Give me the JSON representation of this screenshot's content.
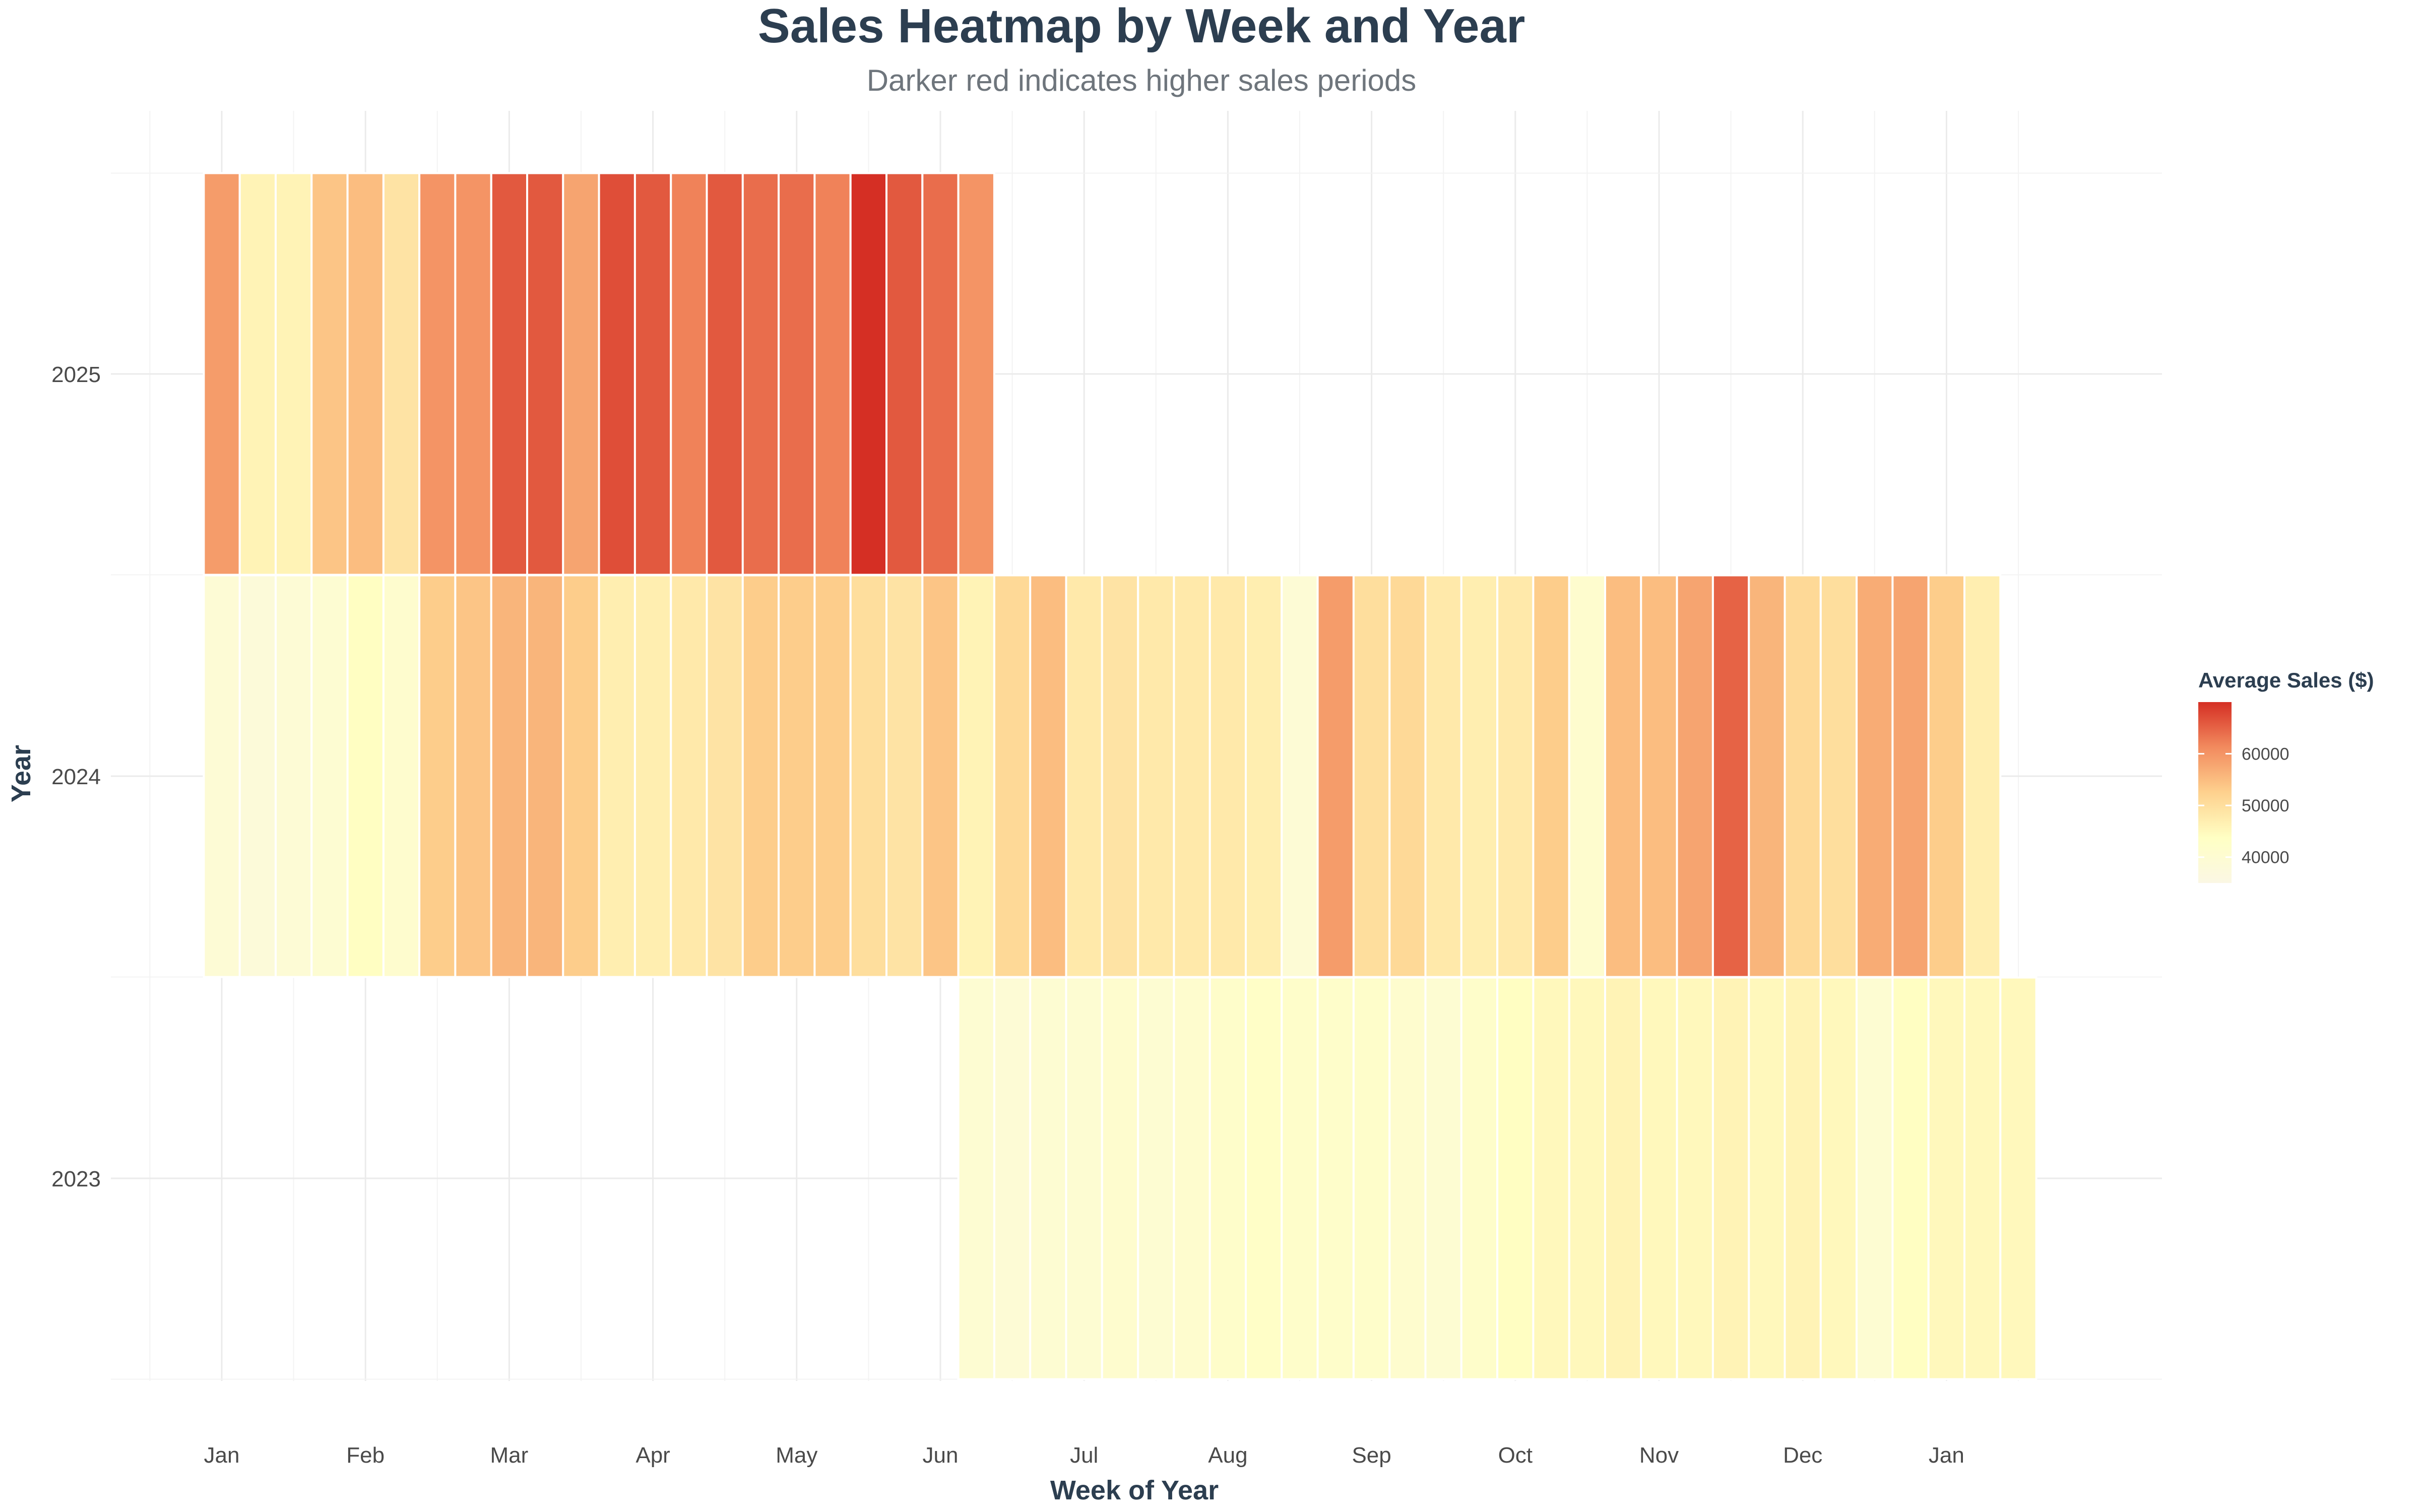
{
  "chart_data": {
    "type": "heatmap",
    "title": "Sales Heatmap by Week and Year",
    "subtitle": "Darker red indicates higher sales periods",
    "xlabel": "Week of Year",
    "ylabel": "Year",
    "x_ticks": [
      {
        "label": "Jan",
        "week": 1
      },
      {
        "label": "Feb",
        "week": 5
      },
      {
        "label": "Mar",
        "week": 9
      },
      {
        "label": "Apr",
        "week": 13
      },
      {
        "label": "May",
        "week": 17
      },
      {
        "label": "Jun",
        "week": 21
      },
      {
        "label": "Jul",
        "week": 25
      },
      {
        "label": "Aug",
        "week": 29
      },
      {
        "label": "Sep",
        "week": 33
      },
      {
        "label": "Oct",
        "week": 37
      },
      {
        "label": "Nov",
        "week": 41
      },
      {
        "label": "Dec",
        "week": 45
      },
      {
        "label": "Jan",
        "week": 49
      }
    ],
    "xlim": [
      -1,
      55
    ],
    "y_categories": [
      "2023",
      "2024",
      "2025"
    ],
    "grid": true,
    "legend": {
      "title": "Average Sales ($)",
      "position": "right",
      "ticks": [
        40000,
        50000,
        60000
      ],
      "range": [
        35000,
        70000
      ],
      "colors": [
        "#fbf7e4",
        "#ffffc4",
        "#fed18e",
        "#f28a5e",
        "#d52f24"
      ]
    },
    "series": [
      {
        "year": "2025",
        "start_week": 1,
        "values": [
          59000,
          46000,
          46000,
          54000,
          55000,
          49000,
          60000,
          60000,
          66000,
          66000,
          58000,
          67000,
          66000,
          62000,
          66000,
          64000,
          64000,
          62000,
          70000,
          66000,
          64000,
          60000
        ]
      },
      {
        "year": "2024",
        "start_week": 1,
        "values": [
          39000,
          38000,
          39000,
          40000,
          44000,
          41000,
          53000,
          54000,
          56000,
          56000,
          53000,
          47000,
          47000,
          48000,
          49000,
          53000,
          53000,
          53000,
          50000,
          49000,
          54000,
          46000,
          51000,
          55000,
          48000,
          49000,
          48000,
          48000,
          48000,
          47000,
          39000,
          59000,
          50000,
          51000,
          48000,
          47000,
          48000,
          53000,
          41000,
          55000,
          55000,
          58000,
          65000,
          56000,
          51000,
          50000,
          57000,
          58000,
          53000,
          47000
        ]
      },
      {
        "year": "2023",
        "start_week": 22,
        "values": [
          40000,
          39000,
          40000,
          40000,
          41000,
          40000,
          41000,
          42000,
          43000,
          42000,
          42000,
          42000,
          41000,
          40000,
          42000,
          44000,
          45000,
          45000,
          46000,
          45000,
          45000,
          46000,
          45000,
          46000,
          45000,
          40000,
          44000,
          45000,
          45000,
          45000
        ]
      }
    ]
  }
}
